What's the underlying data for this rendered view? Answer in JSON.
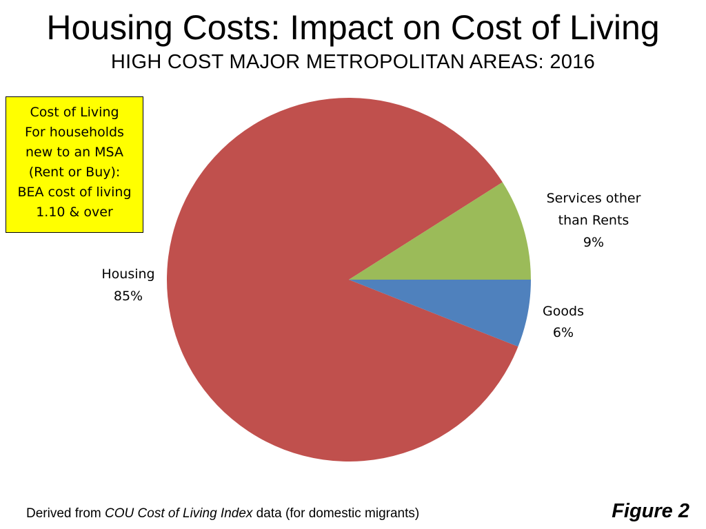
{
  "header": {
    "title": "Housing Costs: Impact on Cost of Living",
    "subtitle": "HIGH COST MAJOR METROPOLITAN AREAS: 2016"
  },
  "note": {
    "lines": [
      "Cost of Living",
      "For households",
      "new to an MSA",
      "(Rent or Buy):",
      "BEA cost of living",
      "1.10 & over"
    ],
    "background_color": "#ffff00"
  },
  "chart_data": {
    "type": "pie",
    "slices": [
      {
        "label_lines": [
          "Services other",
          "than Rents"
        ],
        "value": 9,
        "value_label": "9%",
        "color": "#9bbb59"
      },
      {
        "label_lines": [
          "Goods"
        ],
        "value": 6,
        "value_label": "6%",
        "color": "#4f81bd"
      },
      {
        "label_lines": [
          "Housing"
        ],
        "value": 85,
        "value_label": "85%",
        "color": "#c0504d"
      }
    ],
    "start_angle_deg": 0,
    "direction": "counterclockwise-from-3-oclock for first slice"
  },
  "footer": {
    "source_prefix": "Derived from ",
    "source_italic": "COU Cost of Living Index",
    "source_suffix": " data (for domestic migrants)",
    "figure_label": "Figure 2"
  }
}
